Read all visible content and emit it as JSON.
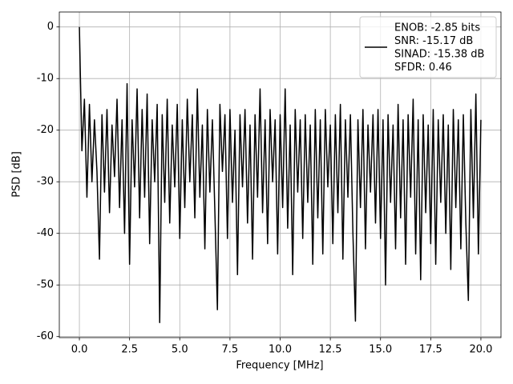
{
  "chart_data": {
    "type": "line",
    "xlabel": "Frequency [MHz]",
    "ylabel": "PSD [dB]",
    "xlim": [
      -1,
      21
    ],
    "ylim": [
      -60.2,
      2.9
    ],
    "xticks": [
      {
        "value": 0,
        "label": "0.0"
      },
      2.5,
      {
        "value": 5,
        "label": "5.0"
      },
      7.5,
      {
        "value": 10,
        "label": "10.0"
      },
      12.5,
      {
        "value": 15,
        "label": "15.0"
      },
      17.5,
      {
        "value": 20,
        "label": "20.0"
      }
    ],
    "yticks": [
      -60,
      -50,
      -40,
      -30,
      -20,
      -10,
      0
    ],
    "grid": true,
    "legend": "upper right",
    "x": [
      0,
      0.125,
      0.25,
      0.375,
      0.5,
      0.625,
      0.75,
      0.875,
      1,
      1.125,
      1.25,
      1.375,
      1.5,
      1.625,
      1.75,
      1.875,
      2,
      2.125,
      2.25,
      2.375,
      2.5,
      2.625,
      2.75,
      2.875,
      3,
      3.125,
      3.25,
      3.375,
      3.5,
      3.625,
      3.75,
      3.875,
      4,
      4.125,
      4.25,
      4.375,
      4.5,
      4.625,
      4.75,
      4.875,
      5,
      5.125,
      5.25,
      5.375,
      5.5,
      5.625,
      5.75,
      5.875,
      6,
      6.125,
      6.25,
      6.375,
      6.5,
      6.625,
      6.75,
      6.875,
      7,
      7.125,
      7.25,
      7.375,
      7.5,
      7.625,
      7.75,
      7.875,
      8,
      8.125,
      8.25,
      8.375,
      8.5,
      8.625,
      8.75,
      8.875,
      9,
      9.125,
      9.25,
      9.375,
      9.5,
      9.625,
      9.75,
      9.875,
      10,
      10.125,
      10.25,
      10.375,
      10.5,
      10.625,
      10.75,
      10.875,
      11,
      11.125,
      11.25,
      11.375,
      11.5,
      11.625,
      11.75,
      11.875,
      12,
      12.125,
      12.25,
      12.375,
      12.5,
      12.625,
      12.75,
      12.875,
      13,
      13.125,
      13.25,
      13.375,
      13.5,
      13.625,
      13.75,
      13.875,
      14,
      14.125,
      14.25,
      14.375,
      14.5,
      14.625,
      14.75,
      14.875,
      15,
      15.125,
      15.25,
      15.375,
      15.5,
      15.625,
      15.75,
      15.875,
      16,
      16.125,
      16.25,
      16.375,
      16.5,
      16.625,
      16.75,
      16.875,
      17,
      17.125,
      17.25,
      17.375,
      17.5,
      17.625,
      17.75,
      17.875,
      18,
      18.125,
      18.25,
      18.375,
      18.5,
      18.625,
      18.75,
      18.875,
      19,
      19.125,
      19.25,
      19.375,
      19.5,
      19.625,
      19.75,
      19.875,
      20
    ],
    "series": [
      {
        "name": "ENOB: -2.85 bits\nSNR: -15.17 dB\nSINAD: -15.38 dB\nSFDR: 0.46",
        "color": "#000000",
        "values": [
          0,
          -24,
          -14,
          -33,
          -15,
          -30,
          -18,
          -28,
          -45,
          -17,
          -32,
          -16,
          -36,
          -19,
          -29,
          -14,
          -35,
          -18,
          -40,
          -11,
          -46,
          -18,
          -31,
          -12,
          -37,
          -16,
          -33,
          -13,
          -42,
          -18,
          -30,
          -15,
          -57.3,
          -17,
          -34,
          -14,
          -38,
          -19,
          -31,
          -15,
          -41,
          -18,
          -35,
          -14,
          -30,
          -17,
          -37,
          -12,
          -33,
          -19,
          -43,
          -16,
          -32,
          -18,
          -36,
          -54.8,
          -15,
          -28,
          -17,
          -41,
          -16,
          -34,
          -20,
          -48,
          -17,
          -31,
          -16,
          -38,
          -19,
          -45,
          -17,
          -33,
          -12,
          -36,
          -18,
          -42,
          -16,
          -30,
          -18,
          -44,
          -17,
          -35,
          -12,
          -39,
          -19,
          -48,
          -16,
          -32,
          -18,
          -41,
          -17,
          -34,
          -19,
          -46,
          -16,
          -37,
          -18,
          -44,
          -16,
          -31,
          -19,
          -42,
          -17,
          -36,
          -15,
          -45,
          -18,
          -33,
          -17,
          -40,
          -57,
          -18,
          -35,
          -16,
          -43,
          -19,
          -32,
          -17,
          -38,
          -16,
          -41,
          -18,
          -50,
          -17,
          -34,
          -19,
          -43,
          -15,
          -37,
          -18,
          -46,
          -17,
          -33,
          -14,
          -44,
          -18,
          -49,
          -17,
          -36,
          -19,
          -42,
          -16,
          -46,
          -18,
          -34,
          -17,
          -40,
          -19,
          -47,
          -16,
          -35,
          -18,
          -43,
          -17,
          -38,
          -53,
          -16,
          -37,
          -13,
          -44,
          -18
        ]
      }
    ]
  }
}
